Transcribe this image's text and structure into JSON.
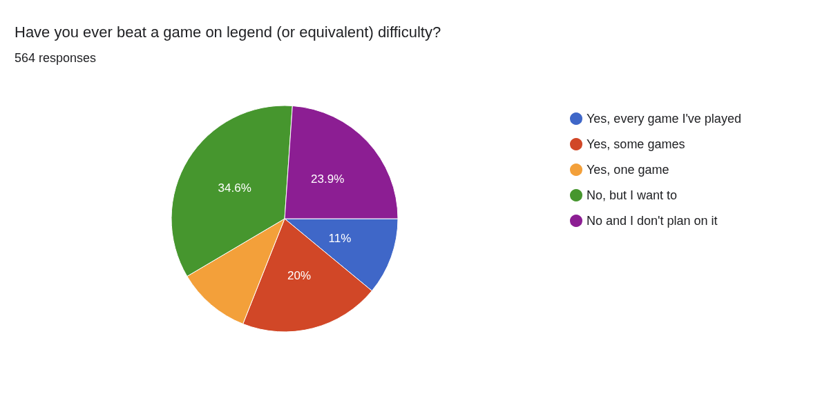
{
  "chart_data": {
    "type": "pie",
    "title": "Have you ever beat a game on legend (or equivalent) difficulty?",
    "subtitle": "564 responses",
    "categories": [
      "Yes, every game I've played",
      "Yes, some games",
      "Yes, one game",
      "No, but I want to",
      "No and I don't plan on it"
    ],
    "values": [
      11,
      20,
      10.5,
      34.6,
      23.9
    ],
    "colors": [
      "#3f67c8",
      "#d14727",
      "#f3a03a",
      "#46962e",
      "#8c1e93"
    ],
    "value_labels": [
      "11%",
      "20%",
      null,
      "34.6%",
      "23.9%"
    ],
    "legend": "right"
  }
}
